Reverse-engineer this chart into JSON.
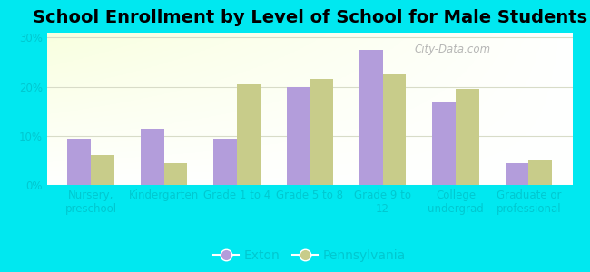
{
  "title": "School Enrollment by Level of School for Male Students",
  "categories": [
    "Nursery,\npreschool",
    "Kindergarten",
    "Grade 1 to 4",
    "Grade 5 to 8",
    "Grade 9 to\n12",
    "College\nundergrad",
    "Graduate or\nprofessional"
  ],
  "exton": [
    9.5,
    11.5,
    9.5,
    20.0,
    27.5,
    17.0,
    4.5
  ],
  "pennsylvania": [
    6.0,
    4.5,
    20.5,
    21.5,
    22.5,
    19.5,
    5.0
  ],
  "exton_color": "#b39ddb",
  "pennsylvania_color": "#c8cc8a",
  "background_outer": "#00e8f0",
  "yticks": [
    0,
    10,
    20,
    30
  ],
  "ylim": [
    0,
    31
  ],
  "legend_labels": [
    "Exton",
    "Pennsylvania"
  ],
  "watermark": "City-Data.com",
  "title_fontsize": 14,
  "tick_fontsize": 8.5,
  "legend_fontsize": 10,
  "tick_color": "#00c8d0",
  "grid_color": "#d8dcc8",
  "bar_width": 0.32
}
